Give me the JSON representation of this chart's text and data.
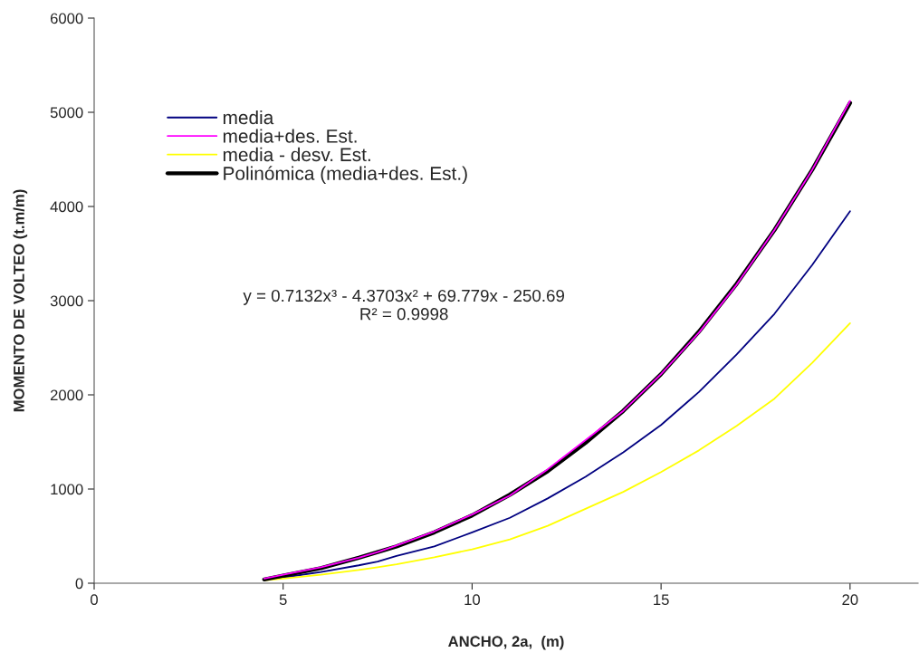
{
  "chart_data": {
    "type": "line",
    "xlabel": "ANCHO, 2a,  (m)",
    "ylabel": "MOMENTO DE VOLTEO (t.m/m)",
    "x": [
      4.5,
      5,
      6,
      7,
      7.5,
      8,
      9,
      10,
      11,
      12,
      13,
      14,
      15,
      16,
      17,
      18,
      19,
      20
    ],
    "series": [
      {
        "name": "media",
        "color": "#000080",
        "values": [
          40,
          60,
          120,
          190,
          230,
          290,
          390,
          540,
          695,
          900,
          1130,
          1390,
          1680,
          2030,
          2430,
          2860,
          3380,
          3950
        ]
      },
      {
        "name": "media+des. Est.",
        "color": "#ff00ff",
        "values": [
          50,
          90,
          170,
          270,
          330,
          400,
          550,
          730,
          930,
          1210,
          1520,
          1830,
          2220,
          2660,
          3170,
          3750,
          4390,
          5120
        ]
      },
      {
        "name": "media - desv. Est.",
        "color": "#ffff00",
        "values": [
          30,
          50,
          90,
          140,
          170,
          200,
          275,
          360,
          465,
          610,
          790,
          970,
          1180,
          1410,
          1670,
          1960,
          2340,
          2760
        ]
      },
      {
        "name": "Polinómica (media+des. Est.)",
        "color": "#000000",
        "values": [
          40,
          80,
          160,
          270,
          330,
          390,
          540,
          720,
          940,
          1190,
          1490,
          1830,
          2220,
          2670,
          3180,
          3750,
          4390,
          5100
        ]
      }
    ],
    "annotations": [
      "y = 0.7132x³ - 4.3703x² + 69.779x - 250.69\nR² = 0.9998"
    ],
    "xlim": [
      0,
      21.8
    ],
    "xticks": [
      0,
      5,
      10,
      15,
      20
    ],
    "ylim": [
      0,
      6000
    ],
    "yticks": [
      0,
      1000,
      2000,
      3000,
      4000,
      5000,
      6000
    ],
    "grid": false,
    "legend": "top left",
    "marker": "none",
    "line_style": "solid"
  }
}
